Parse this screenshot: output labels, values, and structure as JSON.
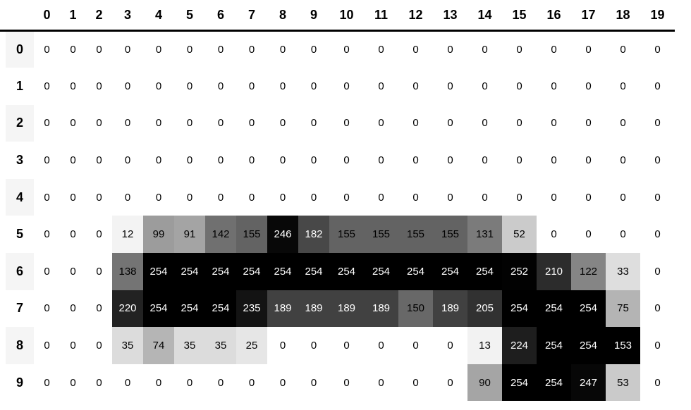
{
  "chart_data": {
    "type": "heatmap",
    "title": "",
    "x_labels": [
      "0",
      "1",
      "2",
      "3",
      "4",
      "5",
      "6",
      "7",
      "8",
      "9",
      "10",
      "11",
      "12",
      "13",
      "14",
      "15",
      "16",
      "17",
      "18",
      "19"
    ],
    "y_labels": [
      "0",
      "1",
      "2",
      "3",
      "4",
      "5",
      "6",
      "7",
      "8",
      "9"
    ],
    "values": [
      [
        0,
        0,
        0,
        0,
        0,
        0,
        0,
        0,
        0,
        0,
        0,
        0,
        0,
        0,
        0,
        0,
        0,
        0,
        0,
        0
      ],
      [
        0,
        0,
        0,
        0,
        0,
        0,
        0,
        0,
        0,
        0,
        0,
        0,
        0,
        0,
        0,
        0,
        0,
        0,
        0,
        0
      ],
      [
        0,
        0,
        0,
        0,
        0,
        0,
        0,
        0,
        0,
        0,
        0,
        0,
        0,
        0,
        0,
        0,
        0,
        0,
        0,
        0
      ],
      [
        0,
        0,
        0,
        0,
        0,
        0,
        0,
        0,
        0,
        0,
        0,
        0,
        0,
        0,
        0,
        0,
        0,
        0,
        0,
        0
      ],
      [
        0,
        0,
        0,
        0,
        0,
        0,
        0,
        0,
        0,
        0,
        0,
        0,
        0,
        0,
        0,
        0,
        0,
        0,
        0,
        0
      ],
      [
        0,
        0,
        0,
        12,
        99,
        91,
        142,
        155,
        246,
        182,
        155,
        155,
        155,
        155,
        131,
        52,
        0,
        0,
        0,
        0
      ],
      [
        0,
        0,
        0,
        138,
        254,
        254,
        254,
        254,
        254,
        254,
        254,
        254,
        254,
        254,
        254,
        252,
        210,
        122,
        33,
        0
      ],
      [
        0,
        0,
        0,
        220,
        254,
        254,
        254,
        235,
        189,
        189,
        189,
        189,
        150,
        189,
        205,
        254,
        254,
        254,
        75,
        0
      ],
      [
        0,
        0,
        0,
        35,
        74,
        35,
        35,
        25,
        0,
        0,
        0,
        0,
        0,
        0,
        13,
        224,
        254,
        254,
        153,
        0
      ],
      [
        0,
        0,
        0,
        0,
        0,
        0,
        0,
        0,
        0,
        0,
        0,
        0,
        0,
        0,
        90,
        254,
        254,
        247,
        53,
        0
      ]
    ],
    "value_range": [
      0,
      254
    ],
    "colormap": "greys: 0 = white background, 254 = black background",
    "cell_annotations": "each cell shows its integer value",
    "legend": "none",
    "grid": "off"
  },
  "render": {
    "corner_label": "",
    "row_header_stripe_bg": "#f5f5f5",
    "header_rule_color": "#000000",
    "cell_text_dark": "#000000",
    "cell_text_light": "#ffffff",
    "white_text_bg_threshold": 90,
    "exceptions": [
      {
        "row": 8,
        "col": 18,
        "background": "#000000",
        "text": "#ffffff"
      }
    ]
  }
}
